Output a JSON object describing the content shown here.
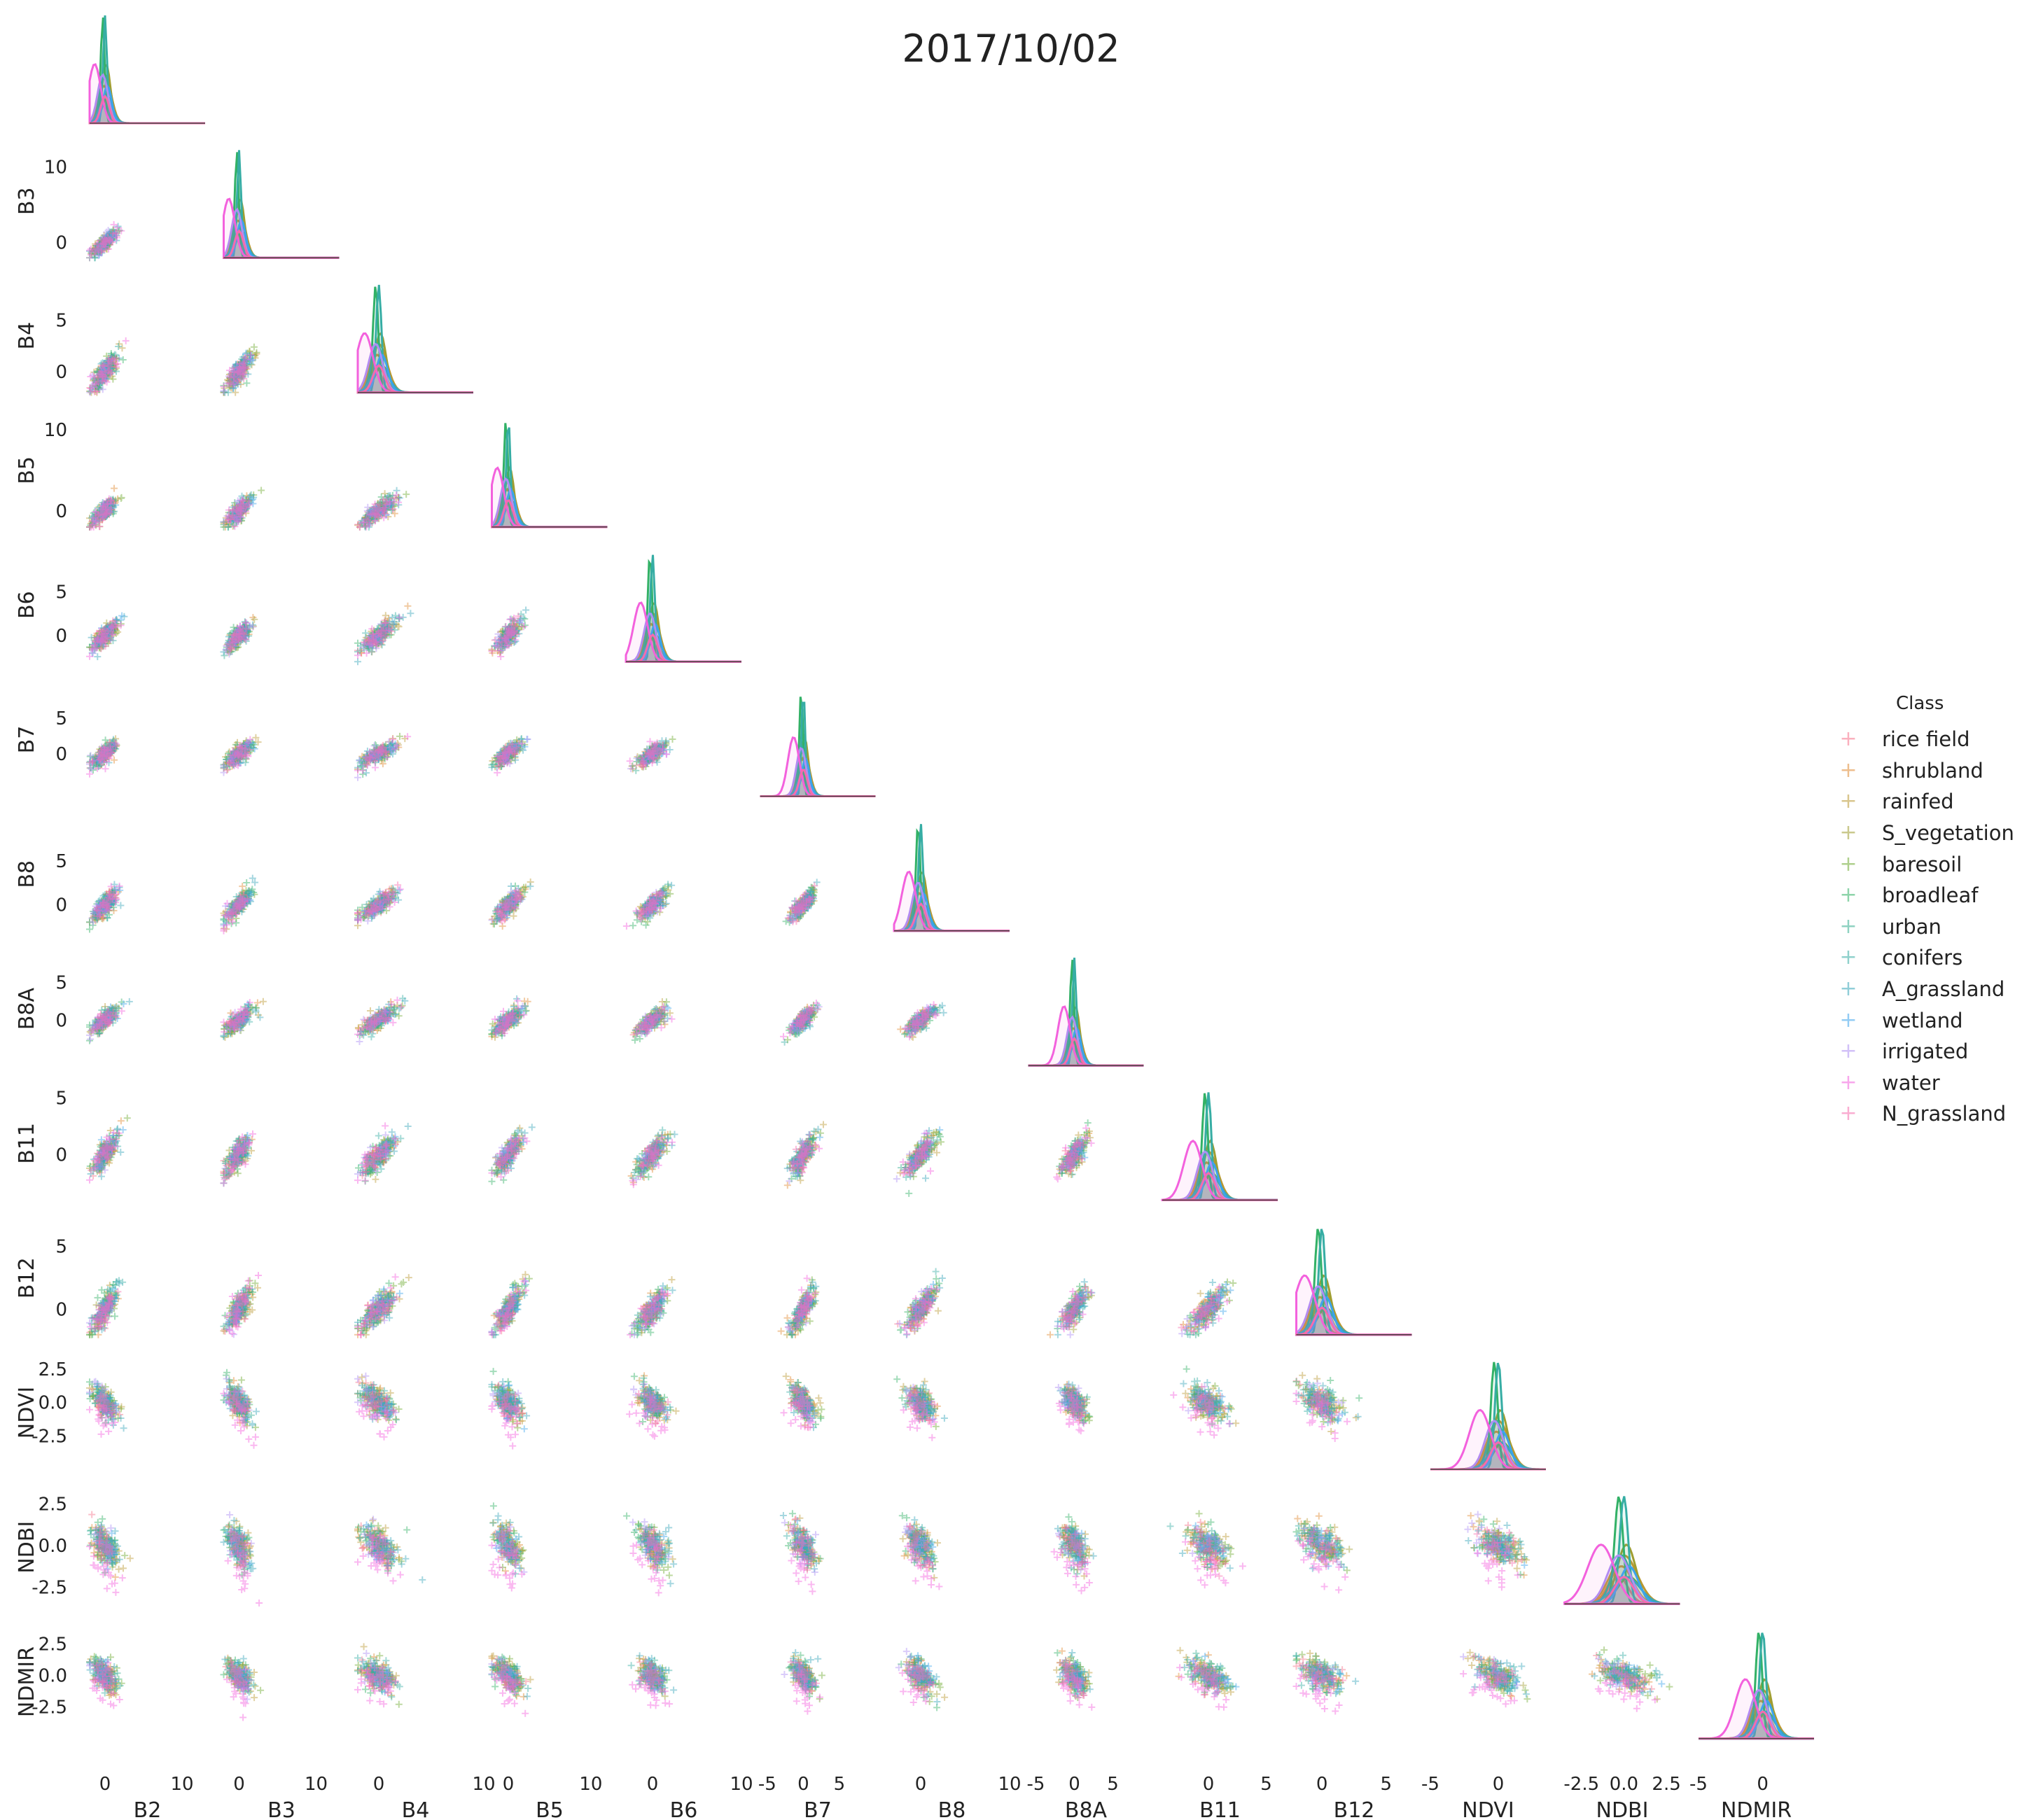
{
  "title": "2017/10/02",
  "chart_data": {
    "type": "pairplot",
    "title": "2017/10/02",
    "variables": [
      "B2",
      "B3",
      "B4",
      "B5",
      "B6",
      "B7",
      "B8",
      "B8A",
      "B11",
      "B12",
      "NDVI",
      "NDBI",
      "NDMIR"
    ],
    "diagonal": "kde",
    "off_diagonal": "scatter",
    "marker": "+",
    "corner": true,
    "legend_title": "Class",
    "legend_position": "right",
    "classes": [
      {
        "name": "rice field",
        "color": "#f77189"
      },
      {
        "name": "shrubland",
        "color": "#e08a31"
      },
      {
        "name": "rainfed",
        "color": "#bb9832"
      },
      {
        "name": "S_vegetation",
        "color": "#a09e31"
      },
      {
        "name": "baresoil",
        "color": "#6fab31"
      },
      {
        "name": "broadleaf",
        "color": "#32b166"
      },
      {
        "name": "urban",
        "color": "#34ae91"
      },
      {
        "name": "conifers",
        "color": "#36ada4"
      },
      {
        "name": "A_grassland",
        "color": "#39a7ba"
      },
      {
        "name": "wetland",
        "color": "#3ba3ec"
      },
      {
        "name": "irrigated",
        "color": "#ae8ff4"
      },
      {
        "name": "water",
        "color": "#f361dd"
      },
      {
        "name": "N_grassland",
        "color": "#f66bad"
      }
    ],
    "axis_ranges": {
      "B2": [
        -2,
        13
      ],
      "B3": [
        -2,
        13
      ],
      "B4": [
        -2,
        9
      ],
      "B5": [
        -2,
        12
      ],
      "B6": [
        -3,
        10
      ],
      "B7": [
        -6,
        10
      ],
      "B8": [
        -3,
        10
      ],
      "B8A": [
        -6,
        9
      ],
      "B11": [
        -4,
        6
      ],
      "B12": [
        -2,
        7
      ],
      "NDVI": [
        -5,
        3.5
      ],
      "NDBI": [
        -3.5,
        3.3
      ],
      "NDMIR": [
        -5,
        4
      ]
    },
    "y_ticks": {
      "B3": [
        "10",
        "0"
      ],
      "B4": [
        "5",
        "0"
      ],
      "B5": [
        "10",
        "0"
      ],
      "B6": [
        "5",
        "0"
      ],
      "B7": [
        "5",
        "0"
      ],
      "B8": [
        "5",
        "0"
      ],
      "B8A": [
        "5",
        "0"
      ],
      "B11": [
        "5",
        "0"
      ],
      "B12": [
        "5",
        "0"
      ],
      "NDVI": [
        "2.5",
        "0.0",
        "-2.5"
      ],
      "NDBI": [
        "2.5",
        "0.0",
        "-2.5"
      ],
      "NDMIR": [
        "2.5",
        "0.0",
        "-2.5"
      ]
    },
    "x_ticks": {
      "B2": [
        "0",
        "10"
      ],
      "B3": [
        "0",
        "10"
      ],
      "B4": [
        "0",
        "10"
      ],
      "B5": [
        "0",
        "10"
      ],
      "B6": [
        "0",
        "10"
      ],
      "B7": [
        "-5",
        "0",
        "5"
      ],
      "B8": [
        "0",
        "10"
      ],
      "B8A": [
        "-5",
        "0",
        "5"
      ],
      "B11": [
        "0",
        "5"
      ],
      "B12": [
        "0",
        "5"
      ],
      "NDVI": [
        "-5",
        "0"
      ],
      "NDBI": [
        "-2.5",
        "0.0",
        "2.5"
      ],
      "NDMIR": [
        "-5",
        "0"
      ]
    },
    "grid": false
  }
}
